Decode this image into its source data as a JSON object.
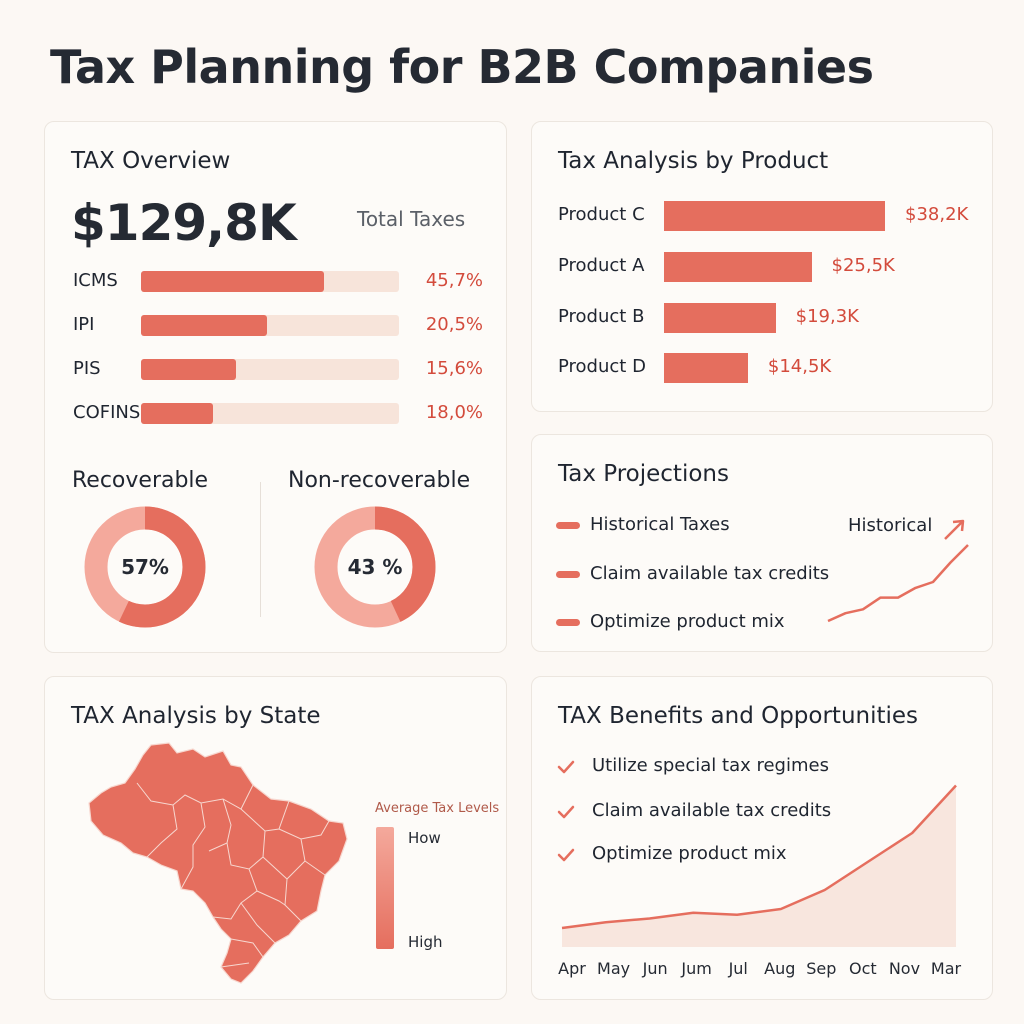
{
  "page": {
    "title": "Tax Planning for B2B Companies"
  },
  "overview": {
    "title": "TAX Overview",
    "total_value": "$129,8K",
    "total_label": "Total Taxes",
    "taxes": [
      {
        "name": "ICMS",
        "pct_label": "45,7%",
        "fill": 0.71
      },
      {
        "name": "IPI",
        "pct_label": "20,5%",
        "fill": 0.49
      },
      {
        "name": "PIS",
        "pct_label": "15,6%",
        "fill": 0.37
      },
      {
        "name": "COFINS",
        "pct_label": "18,0%",
        "fill": 0.28
      }
    ],
    "recoverable": {
      "title": "Recoverable",
      "value_label": "57%",
      "value": 57
    },
    "non_recoverable": {
      "title": "Non-recoverable",
      "value_label": "43 %",
      "value": 43
    }
  },
  "product": {
    "title": "Tax Analysis by Product",
    "items": [
      {
        "name": "Product C",
        "value_label": "$38,2K",
        "value": 38.2
      },
      {
        "name": "Product A",
        "value_label": "$25,5K",
        "value": 25.5
      },
      {
        "name": "Product B",
        "value_label": "$19,3K",
        "value": 19.3
      },
      {
        "name": "Product D",
        "value_label": "$14,5K",
        "value": 14.5
      }
    ]
  },
  "projections": {
    "title": "Tax Projections",
    "items": [
      "Historical Taxes",
      "Claim available tax credits",
      "Optimize product mix"
    ],
    "series_label": "Historical"
  },
  "state": {
    "title": "TAX Analysis by State",
    "legend_title": "Average Tax Levels",
    "legend_low": "How",
    "legend_high": "High"
  },
  "benefits": {
    "title": "TAX Benefits and Opportunities",
    "items": [
      "Utilize special tax regimes",
      "Claim available tax credits",
      "Optimize product mix"
    ]
  },
  "colors": {
    "accent": "#e56e5e",
    "accent_light": "#f4a99c",
    "track": "#f7e4da",
    "value_text": "#d34b3c"
  },
  "chart_data": [
    {
      "type": "bar",
      "title": "Tax Analysis by Product",
      "categories": [
        "Product C",
        "Product A",
        "Product B",
        "Product D"
      ],
      "values": [
        38.2,
        25.5,
        19.3,
        14.5
      ],
      "unit": "$K"
    },
    {
      "type": "line",
      "title": "Tax Projections",
      "series": [
        {
          "name": "Historical",
          "values": [
            10,
            14,
            16,
            22,
            22,
            27,
            30,
            40,
            49
          ]
        }
      ]
    },
    {
      "type": "area",
      "title": "TAX Benefits and Opportunities",
      "categories": [
        "Apr",
        "May",
        "Jun",
        "Jum",
        "Jul",
        "Aug",
        "Sep",
        "Oct",
        "Nov",
        "Mar"
      ],
      "values": [
        10,
        13,
        15,
        18,
        17,
        20,
        30,
        45,
        60,
        85
      ],
      "ylim": [
        0,
        100
      ]
    }
  ]
}
